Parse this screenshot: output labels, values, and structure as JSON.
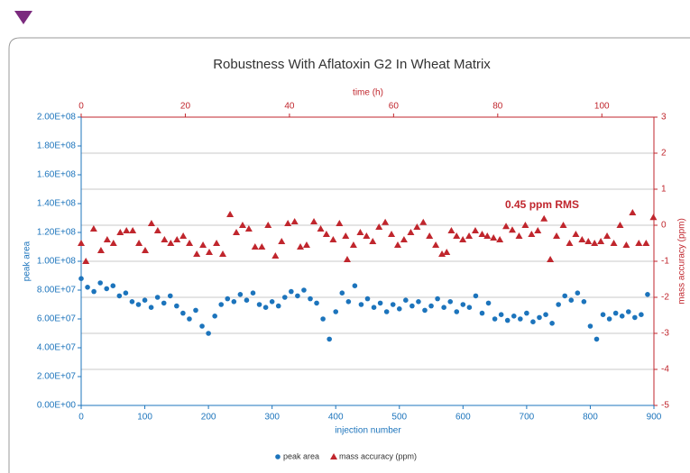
{
  "chart_data": {
    "type": "scatter",
    "title": "Robustness With Aflatoxin G2 In Wheat Matrix",
    "xlabel": "injection number",
    "x2label": "time (h)",
    "ylabel": "peak area",
    "y2label": "mass accuracy (ppm)",
    "annotation": "0.45 ppm RMS",
    "xlim": [
      0,
      900
    ],
    "xticks": [
      0,
      100,
      200,
      300,
      400,
      500,
      600,
      700,
      800,
      900
    ],
    "x2lim": [
      0,
      110
    ],
    "x2ticks": [
      0,
      20,
      40,
      60,
      80,
      100
    ],
    "ylim": [
      0,
      200000000
    ],
    "yticks": [
      {
        "value": 0,
        "label": "0.00E+00"
      },
      {
        "value": 20000000,
        "label": "2.00E+07"
      },
      {
        "value": 40000000,
        "label": "4.00E+07"
      },
      {
        "value": 60000000,
        "label": "6.00E+07"
      },
      {
        "value": 80000000,
        "label": "8.00E+07"
      },
      {
        "value": 100000000,
        "label": "1.00E+08"
      },
      {
        "value": 120000000,
        "label": "1.20E+08"
      },
      {
        "value": 140000000,
        "label": "1.40E+08"
      },
      {
        "value": 160000000,
        "label": "1.60E+08"
      },
      {
        "value": 180000000,
        "label": "1.80E+08"
      },
      {
        "value": 200000000,
        "label": "2.00E+08"
      }
    ],
    "y2lim": [
      -5,
      3
    ],
    "y2ticks": [
      -5,
      -4,
      -3,
      -2,
      -1,
      0,
      1,
      2,
      3
    ],
    "grid": "y2",
    "legend": "bottom",
    "series": [
      {
        "name": "peak area",
        "color": "#1c74bc",
        "marker": "circle",
        "x": [
          0,
          10,
          20,
          30,
          40,
          50,
          60,
          70,
          80,
          90,
          100,
          110,
          120,
          130,
          140,
          150,
          160,
          170,
          180,
          190,
          200,
          210,
          220,
          230,
          240,
          250,
          260,
          270,
          280,
          290,
          300,
          310,
          320,
          330,
          340,
          350,
          360,
          370,
          380,
          390,
          400,
          410,
          420,
          430,
          440,
          450,
          460,
          470,
          480,
          490,
          500,
          510,
          520,
          530,
          540,
          550,
          560,
          570,
          580,
          590,
          600,
          610,
          620,
          630,
          640,
          650,
          660,
          670,
          680,
          690,
          700,
          710,
          720,
          730,
          740,
          750,
          760,
          770,
          780,
          790,
          800,
          810,
          820,
          830,
          840,
          850,
          860,
          870,
          880,
          890
        ],
        "values": [
          88000000.0,
          82000000.0,
          79000000.0,
          85000000.0,
          81000000.0,
          83000000.0,
          76000000.0,
          78000000.0,
          72000000.0,
          70000000.0,
          73000000.0,
          68000000.0,
          75000000.0,
          71000000.0,
          76000000.0,
          69000000.0,
          64000000.0,
          60000000.0,
          66000000.0,
          55000000.0,
          50000000.0,
          62000000.0,
          70000000.0,
          74000000.0,
          72000000.0,
          77000000.0,
          73000000.0,
          78000000.0,
          70000000.0,
          68000000.0,
          72000000.0,
          69000000.0,
          75000000.0,
          79000000.0,
          76000000.0,
          80000000.0,
          74000000.0,
          71000000.0,
          60000000.0,
          46000000.0,
          65000000.0,
          78000000.0,
          72000000.0,
          83000000.0,
          70000000.0,
          74000000.0,
          68000000.0,
          71000000.0,
          65000000.0,
          70000000.0,
          67000000.0,
          73000000.0,
          69000000.0,
          72000000.0,
          66000000.0,
          69000000.0,
          74000000.0,
          68000000.0,
          72000000.0,
          65000000.0,
          70000000.0,
          68000000.0,
          76000000.0,
          64000000.0,
          71000000.0,
          60000000.0,
          63000000.0,
          59000000.0,
          62000000.0,
          60000000.0,
          64000000.0,
          58000000.0,
          61000000.0,
          63000000.0,
          57000000.0,
          70000000.0,
          76000000.0,
          73000000.0,
          78000000.0,
          72000000.0,
          55000000.0,
          46000000.0,
          63000000.0,
          60000000.0,
          64000000.0,
          62000000.0,
          65000000.0,
          61000000.0,
          63000000.0,
          77000000.0
        ]
      },
      {
        "name": "mass accuracy (ppm)",
        "color": "#c0262d",
        "marker": "triangle",
        "axis": "y2",
        "xaxis": "x2",
        "x": [
          0,
          0.9,
          2.4,
          3.8,
          5,
          6.2,
          7.5,
          8.7,
          9.9,
          11.1,
          12.3,
          13.5,
          14.7,
          16,
          17.2,
          18.4,
          19.6,
          20.8,
          22.2,
          23.4,
          24.6,
          26,
          27.2,
          28.6,
          29.8,
          31,
          32.2,
          33.4,
          34.7,
          35.9,
          37.3,
          38.5,
          39.7,
          41,
          42.1,
          43.3,
          44.7,
          46,
          47.1,
          48.4,
          49.6,
          50.8,
          51.1,
          52.3,
          53.6,
          54.8,
          56,
          57.2,
          58.4,
          59.6,
          60.8,
          62,
          63.3,
          64.5,
          65.7,
          66.9,
          68.1,
          69.3,
          70.2,
          71.1,
          72.1,
          73.3,
          74.5,
          75.7,
          77,
          78,
          79.2,
          80.4,
          81.6,
          82.8,
          84.1,
          85.3,
          86.5,
          87.7,
          88.9,
          90.1,
          91.3,
          92.6,
          93.8,
          95,
          96.2,
          97.4,
          98.6,
          99.8,
          101,
          102.3,
          103.5,
          104.7,
          105.9,
          107.1,
          108.5,
          109.9
        ],
        "values": [
          -0.5,
          -1.0,
          -0.1,
          -0.7,
          -0.4,
          -0.5,
          -0.2,
          -0.15,
          -0.15,
          -0.5,
          -0.7,
          0.05,
          -0.15,
          -0.4,
          -0.5,
          -0.4,
          -0.3,
          -0.5,
          -0.8,
          -0.55,
          -0.75,
          -0.5,
          -0.8,
          0.3,
          -0.2,
          0,
          -0.1,
          -0.6,
          -0.6,
          0,
          -0.85,
          -0.45,
          0.05,
          0.1,
          -0.6,
          -0.55,
          0.1,
          -0.1,
          -0.25,
          -0.4,
          0.05,
          -0.3,
          -0.95,
          -0.55,
          -0.2,
          -0.3,
          -0.45,
          -0.05,
          0.08,
          -0.25,
          -0.55,
          -0.4,
          -0.2,
          -0.05,
          0.08,
          -0.3,
          -0.55,
          -0.8,
          -0.75,
          -0.15,
          -0.3,
          -0.4,
          -0.3,
          -0.15,
          -0.25,
          -0.3,
          -0.35,
          -0.4,
          -0.03,
          -0.13,
          -0.3,
          0,
          -0.25,
          -0.15,
          0.18,
          -0.95,
          -0.3,
          0,
          -0.5,
          -0.25,
          -0.4,
          -0.45,
          -0.5,
          -0.45,
          -0.3,
          -0.5,
          0,
          -0.55,
          0.35,
          -0.5,
          -0.5,
          0.22
        ]
      }
    ]
  }
}
